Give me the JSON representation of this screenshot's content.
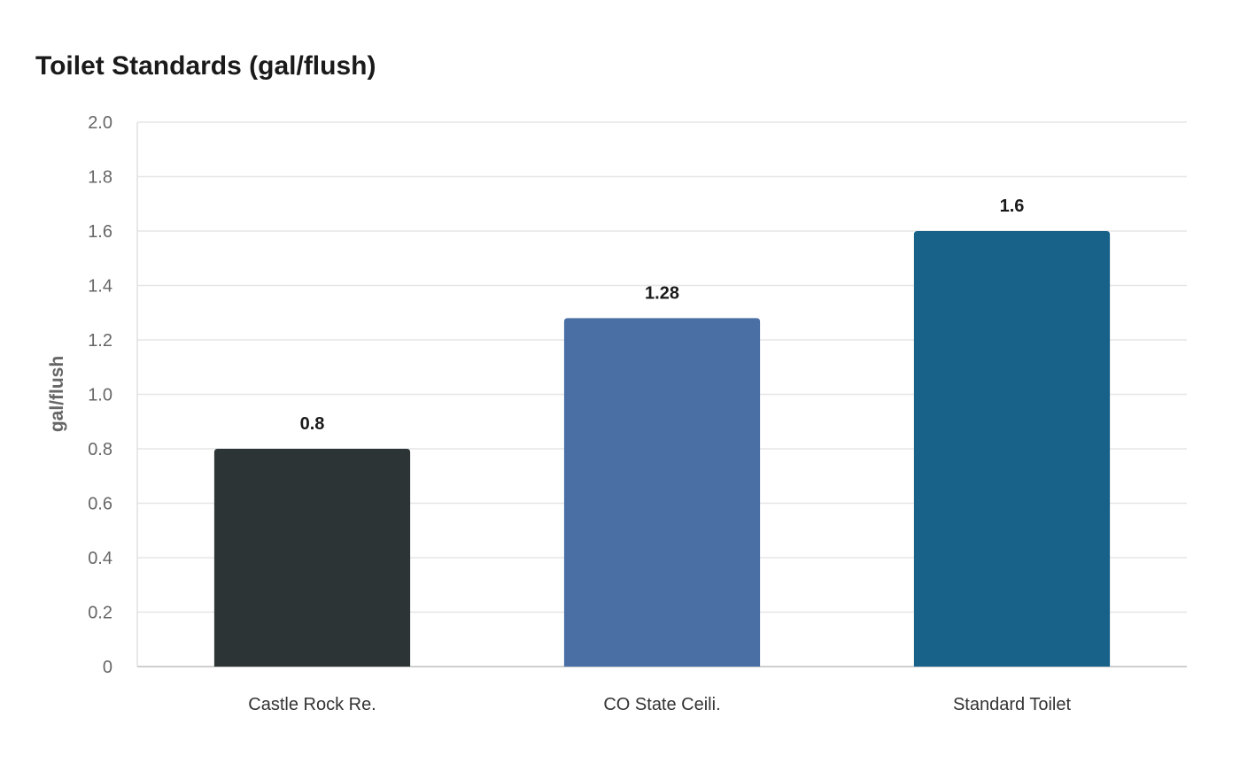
{
  "chart_data": {
    "type": "bar",
    "title": "Toilet Standards (gal/flush)",
    "xlabel": "",
    "ylabel": "gal/flush",
    "categories": [
      "Castle Rock Re.",
      "CO State Ceili.",
      "Standard Toilet"
    ],
    "values": [
      0.8,
      1.28,
      1.6
    ],
    "value_labels": [
      "0.8",
      "1.28",
      "1.6"
    ],
    "colors": [
      "#2d3436",
      "#4a6fa5",
      "#186189"
    ],
    "ylim": [
      0,
      2.0
    ],
    "yticks": [
      0,
      0.2,
      0.4,
      0.6,
      0.8,
      1.0,
      1.2,
      1.4,
      1.6,
      1.8,
      2.0
    ],
    "ytick_labels": [
      "0",
      "0.2",
      "0.4",
      "0.6",
      "0.8",
      "1.0",
      "1.2",
      "1.4",
      "1.6",
      "1.8",
      "2.0"
    ],
    "grid": true,
    "legend": "none"
  }
}
